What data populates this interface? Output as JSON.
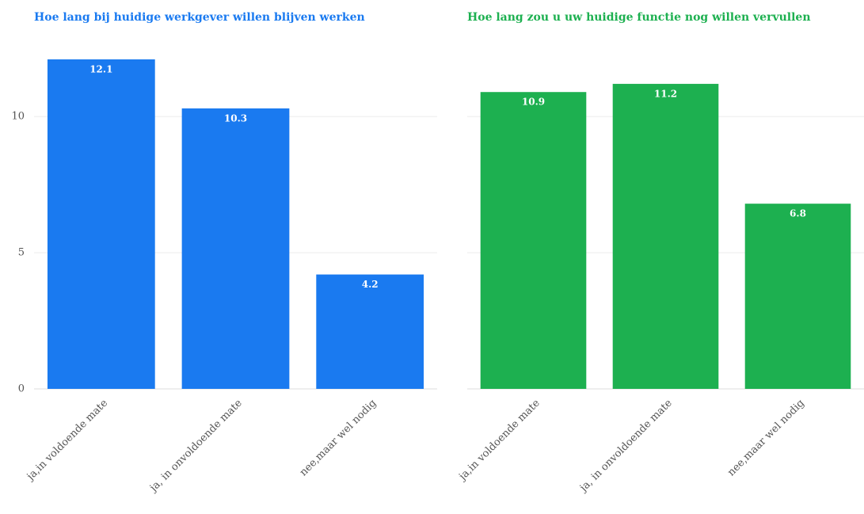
{
  "chart_data": [
    {
      "type": "bar",
      "title": "Hoe lang bij huidige werkgever willen blijven werken",
      "categories": [
        "ja,in voldoende mate",
        "ja, in onvoldoende mate",
        "nee,maar wel nodig"
      ],
      "values": [
        12.1,
        10.3,
        4.2
      ],
      "color": "#1a7af0",
      "ylim": [
        0,
        13
      ],
      "yticks": [
        0,
        5,
        10
      ],
      "grid": true
    },
    {
      "type": "bar",
      "title": "Hoe lang zou u uw huidige functie nog willen vervullen",
      "categories": [
        "ja,in voldoende mate",
        "ja, in onvoldoende mate",
        "nee,maar wel nodig"
      ],
      "values": [
        10.9,
        11.2,
        6.8
      ],
      "color": "#1db050",
      "ylim": [
        0,
        13
      ],
      "grid": true
    }
  ]
}
